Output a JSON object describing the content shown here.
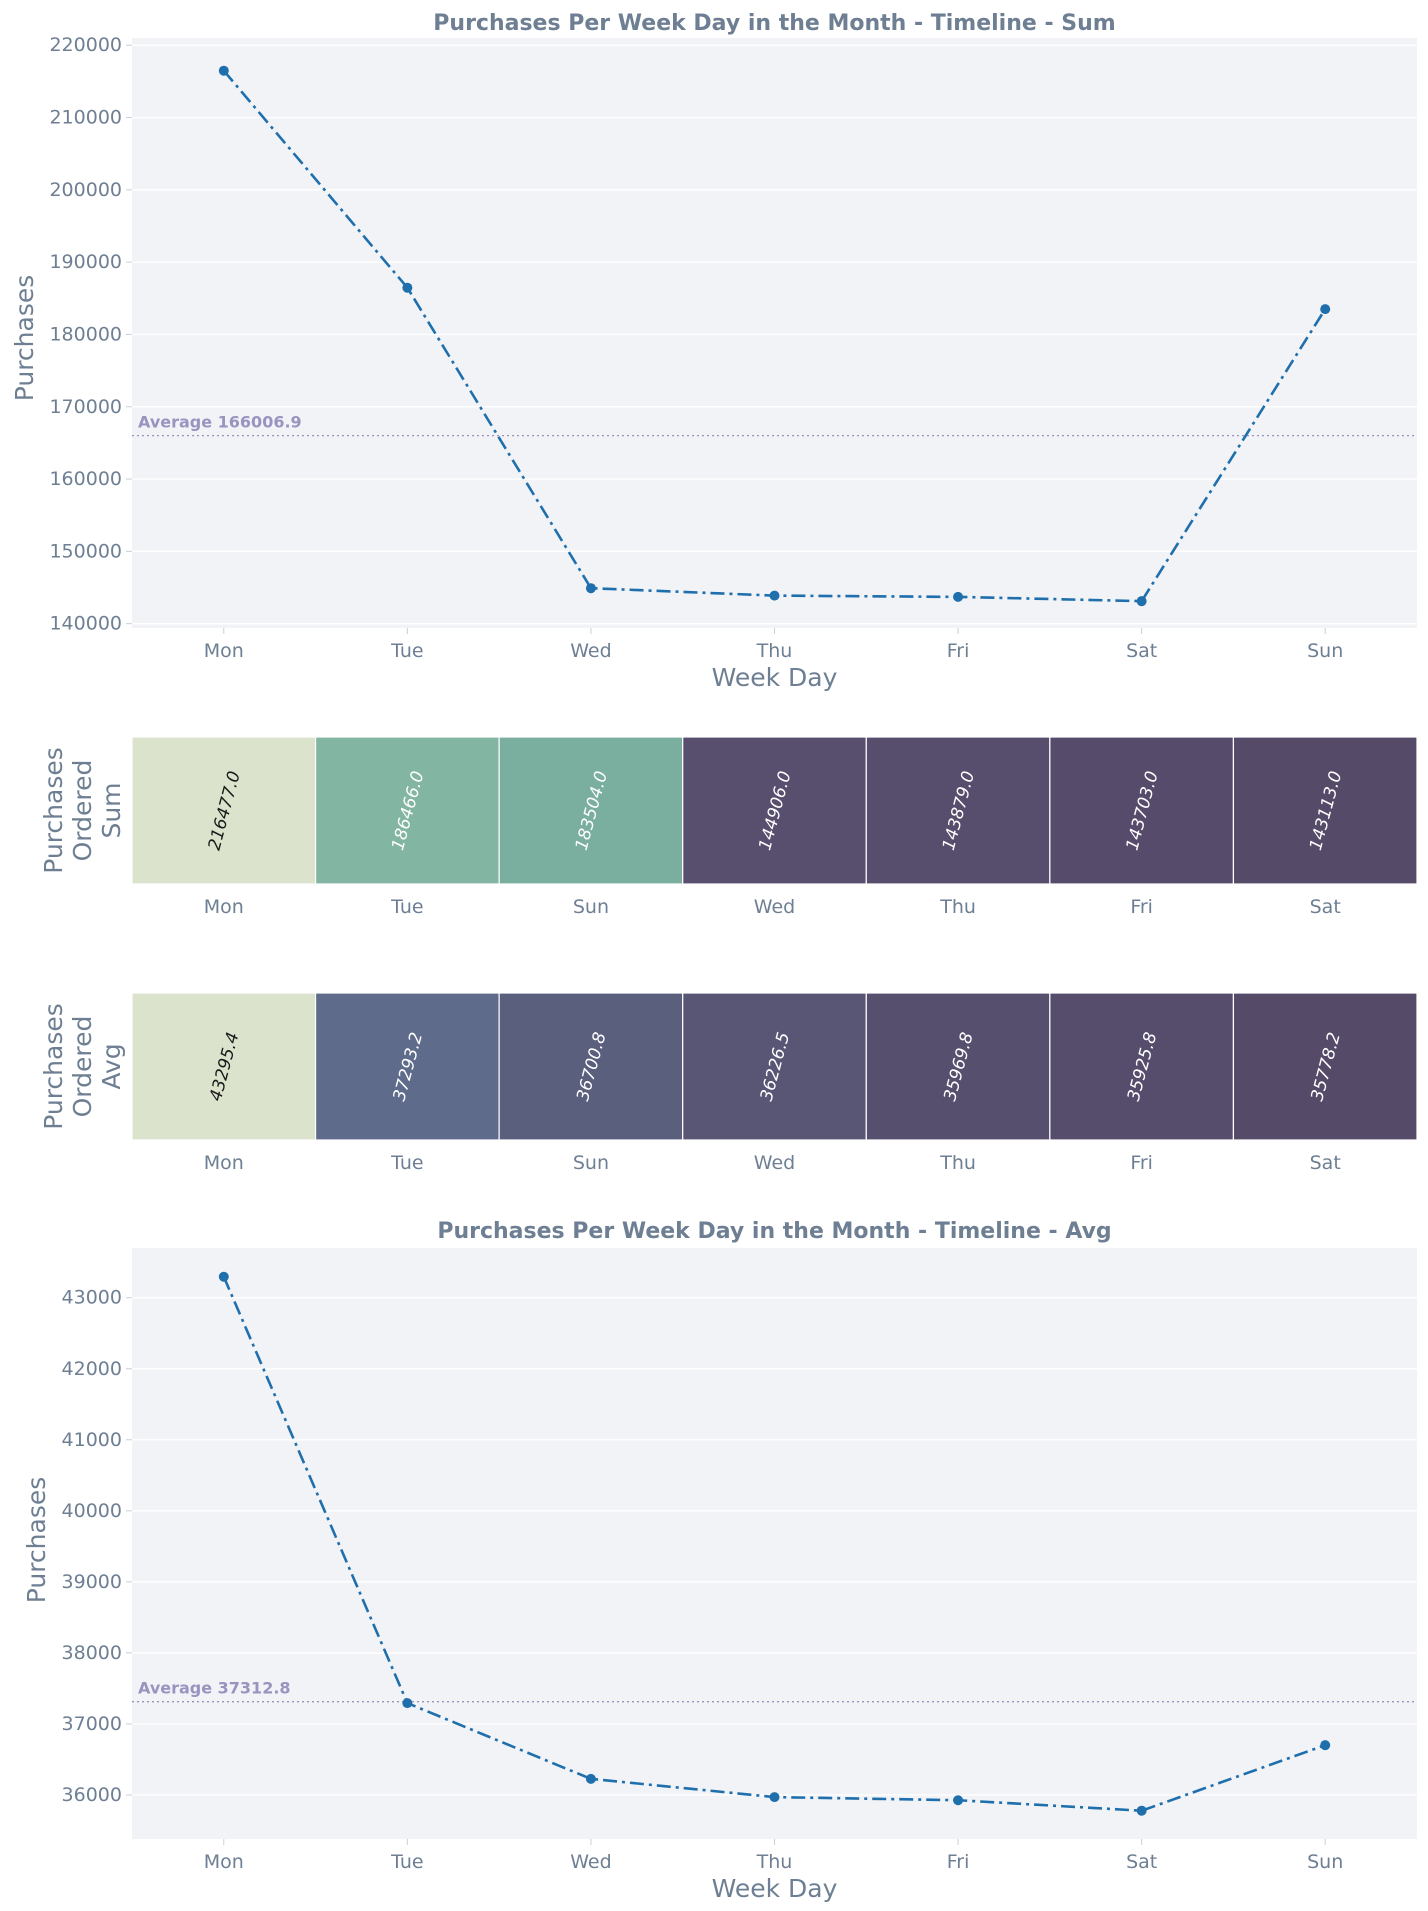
{
  "chart_data": [
    {
      "type": "line",
      "title": "Purchases Per Week Day in the Month - Timeline - Sum",
      "xlabel": "Week Day",
      "ylabel": "Purchases",
      "categories": [
        "Mon",
        "Tue",
        "Wed",
        "Thu",
        "Fri",
        "Sat",
        "Sun"
      ],
      "values": [
        216477.0,
        186466.0,
        144906.0,
        143879.0,
        143703.0,
        143113.0,
        183504.0
      ],
      "yticks": [
        "140000",
        "150000",
        "160000",
        "170000",
        "180000",
        "190000",
        "200000",
        "210000",
        "220000"
      ],
      "ylim": [
        139400,
        221000
      ],
      "average_value": 166006.9,
      "average_label": "Average 166006.9",
      "line_color": "#1f6fad",
      "line_style": "dash-dot",
      "marker": "circle",
      "grid": true,
      "background": "#f1f3f7"
    },
    {
      "type": "heatmap",
      "ylabel_lines": [
        "Purchases",
        "Ordered",
        "Sum"
      ],
      "categories": [
        "Mon",
        "Tue",
        "Sun",
        "Wed",
        "Thu",
        "Fri",
        "Sat"
      ],
      "values": [
        216477.0,
        186466.0,
        183504.0,
        144906.0,
        143879.0,
        143703.0,
        143113.0
      ],
      "labels": [
        "216477.0",
        "186466.0",
        "183504.0",
        "144906.0",
        "143879.0",
        "143703.0",
        "143113.0"
      ],
      "cell_colors": [
        "#dbe3cc",
        "#83b6a2",
        "#7aafa0",
        "#584e6e",
        "#574d6c",
        "#564b6a",
        "#554a68"
      ],
      "label_colors": [
        "#1a1a1a",
        "#ffffff",
        "#ffffff",
        "#ffffff",
        "#ffffff",
        "#ffffff",
        "#ffffff"
      ]
    },
    {
      "type": "heatmap",
      "ylabel_lines": [
        "Purchases",
        "Ordered",
        "Avg"
      ],
      "categories": [
        "Mon",
        "Tue",
        "Sun",
        "Wed",
        "Thu",
        "Fri",
        "Sat"
      ],
      "values": [
        43295.4,
        37293.2,
        36700.8,
        36226.5,
        35969.8,
        35925.8,
        35778.2
      ],
      "labels": [
        "43295.4",
        "37293.2",
        "36700.8",
        "36226.5",
        "35969.8",
        "35925.8",
        "35778.2"
      ],
      "cell_colors": [
        "#dbe3cc",
        "#5f6b8b",
        "#5b5f7e",
        "#595675",
        "#574f6e",
        "#564d6c",
        "#554a68"
      ],
      "label_colors": [
        "#1a1a1a",
        "#ffffff",
        "#ffffff",
        "#ffffff",
        "#ffffff",
        "#ffffff",
        "#ffffff"
      ]
    },
    {
      "type": "line",
      "title": "Purchases Per Week Day in the Month - Timeline - Avg",
      "xlabel": "Week Day",
      "ylabel": "Purchases",
      "categories": [
        "Mon",
        "Tue",
        "Wed",
        "Thu",
        "Fri",
        "Sat",
        "Sun"
      ],
      "values": [
        43295.4,
        37293.2,
        36226.5,
        35969.8,
        35925.8,
        35778.2,
        36700.8
      ],
      "yticks": [
        "36000",
        "37000",
        "38000",
        "39000",
        "40000",
        "41000",
        "42000",
        "43000"
      ],
      "ylim": [
        35380,
        43700
      ],
      "average_value": 37312.8,
      "average_label": "Average 37312.8",
      "line_color": "#1f6fad",
      "line_style": "dash-dot",
      "marker": "circle",
      "grid": true,
      "background": "#f1f3f7"
    }
  ]
}
